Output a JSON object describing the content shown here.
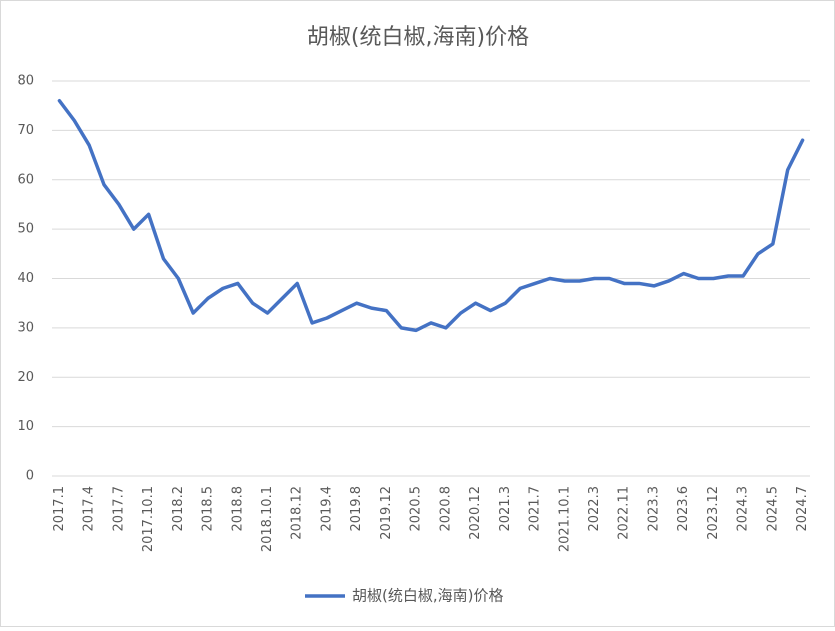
{
  "chart_data": {
    "type": "line",
    "title": "胡椒(统白椒,海南)价格",
    "categories": [
      "2017.1",
      null,
      "2017.4",
      null,
      "2017.7",
      null,
      "2017.10.1",
      null,
      "2018.2",
      null,
      "2018.5",
      null,
      "2018.8",
      null,
      "2018.10.1",
      null,
      "2018.12",
      null,
      "2019.4",
      null,
      "2019.8",
      null,
      "2019.12",
      null,
      "2020.5",
      null,
      "2020.8",
      null,
      "2020.12",
      null,
      "2021.3",
      null,
      "2021.7",
      null,
      "2021.10.1",
      null,
      "2022.3",
      null,
      "2022.11",
      null,
      "2023.3",
      null,
      "2023.6",
      null,
      "2023.12",
      null,
      "2024.3",
      null,
      "2024.5",
      null,
      "2024.7"
    ],
    "series": [
      {
        "name": "胡椒(统白椒,海南)价格",
        "color": "#4472c4",
        "values": [
          76,
          72,
          67,
          59,
          55,
          50,
          53,
          44,
          40,
          33,
          36,
          38,
          39,
          35,
          33,
          36,
          39,
          31,
          32,
          33.5,
          35,
          34,
          33.5,
          30,
          29.5,
          31,
          30,
          33,
          35,
          33.5,
          35,
          38,
          39,
          40,
          39.5,
          39.5,
          40,
          40,
          39,
          39,
          38.5,
          39.5,
          41,
          40,
          40,
          40.5,
          40.5,
          45,
          47,
          62,
          68
        ]
      }
    ],
    "ylim": [
      0,
      80
    ],
    "yticks": [
      0,
      10,
      20,
      30,
      40,
      50,
      60,
      70,
      80
    ],
    "grid": true,
    "legend": "bottom"
  }
}
